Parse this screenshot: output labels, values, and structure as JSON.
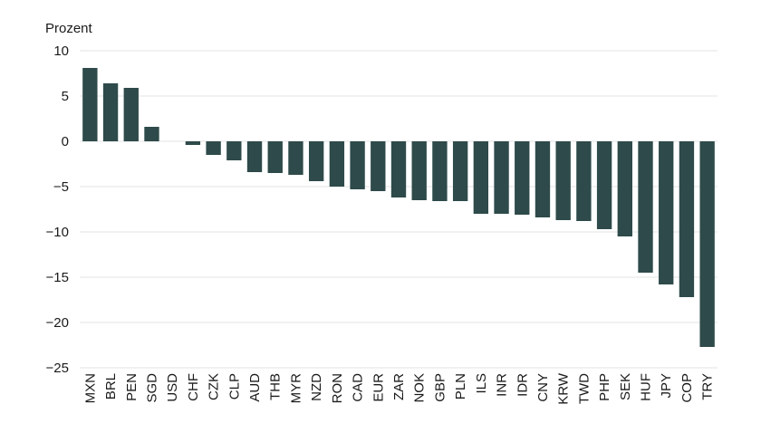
{
  "chart_data": {
    "type": "bar",
    "ylabel": "Prozent",
    "ylim": [
      -25,
      10
    ],
    "yticks": [
      10,
      5,
      0,
      -5,
      -10,
      -15,
      -20,
      -25
    ],
    "ytick_labels": [
      "10",
      "5",
      "0",
      "−5",
      "−10",
      "−15",
      "−20",
      "−25"
    ],
    "grid": true,
    "bar_color": "#2e4a4a",
    "categories": [
      "MXN",
      "BRL",
      "PEN",
      "SGD",
      "USD",
      "CHF",
      "CZK",
      "CLP",
      "AUD",
      "THB",
      "MYR",
      "NZD",
      "RON",
      "CAD",
      "EUR",
      "ZAR",
      "NOK",
      "GBP",
      "PLN",
      "ILS",
      "INR",
      "IDR",
      "CNY",
      "KRW",
      "TWD",
      "PHP",
      "SEK",
      "HUF",
      "JPY",
      "COP",
      "TRY"
    ],
    "values": [
      8.1,
      6.4,
      5.9,
      1.6,
      0.0,
      -0.4,
      -1.5,
      -2.1,
      -3.4,
      -3.5,
      -3.7,
      -4.4,
      -5.0,
      -5.3,
      -5.5,
      -6.2,
      -6.5,
      -6.6,
      -6.6,
      -8.0,
      -8.0,
      -8.1,
      -8.4,
      -8.7,
      -8.8,
      -9.7,
      -10.5,
      -14.5,
      -15.8,
      -17.2,
      -22.7
    ]
  }
}
